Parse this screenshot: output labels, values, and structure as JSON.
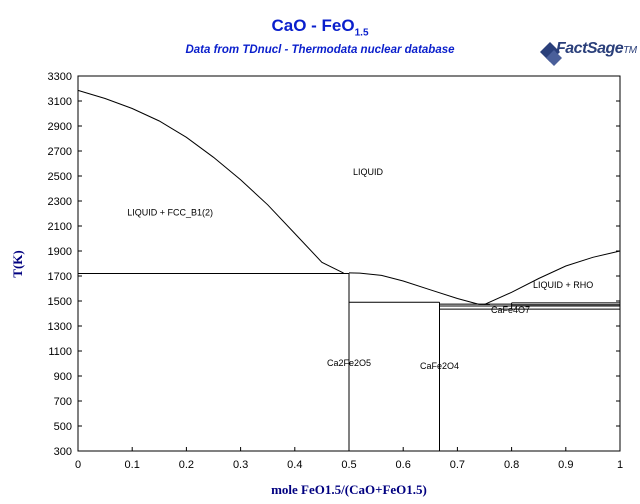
{
  "title_main": "CaO - FeO",
  "title_sub": "1.5",
  "subtitle": "Data from TDnucl - Thermodata nuclear database",
  "logo": {
    "brand": "FactSage",
    "mark": "TM"
  },
  "chart_data": {
    "type": "line",
    "title": "CaO - FeO1.5",
    "subtitle": "Data from TDnucl - Thermodata nuclear database",
    "xlabel": "mole FeO1.5/(CaO+FeO1.5)",
    "ylabel": "T(K)",
    "xlim": [
      0,
      1
    ],
    "ylim": [
      300,
      3300
    ],
    "xticks": [
      0,
      0.1,
      0.2,
      0.3,
      0.4,
      0.5,
      0.6,
      0.7,
      0.8,
      0.9,
      1
    ],
    "xtick_labels": [
      "0",
      "0.1",
      "0.2",
      "0.3",
      "0.4",
      "0.5",
      "0.6",
      "0.7",
      "0.8",
      "0.9",
      "1"
    ],
    "yticks": [
      300,
      500,
      700,
      900,
      1100,
      1300,
      1500,
      1700,
      1900,
      2100,
      2300,
      2500,
      2700,
      2900,
      3100,
      3300
    ],
    "ytick_labels": [
      "300",
      "500",
      "700",
      "900",
      "1100",
      "1300",
      "1500",
      "1700",
      "1900",
      "2100",
      "2300",
      "2500",
      "2700",
      "2900",
      "3100",
      "3300"
    ],
    "grid": false,
    "series": [
      {
        "values": [
          [
            0,
            3185
          ],
          [
            0.05,
            3120
          ],
          [
            0.1,
            3040
          ],
          [
            0.15,
            2940
          ],
          [
            0.2,
            2810
          ],
          [
            0.25,
            2650
          ],
          [
            0.3,
            2470
          ],
          [
            0.35,
            2270
          ],
          [
            0.4,
            2040
          ],
          [
            0.45,
            1810
          ],
          [
            0.49,
            1723
          ]
        ]
      },
      {
        "values": [
          [
            0.5,
            1725
          ],
          [
            0.52,
            1723
          ],
          [
            0.56,
            1705
          ],
          [
            0.6,
            1660
          ],
          [
            0.65,
            1590
          ],
          [
            0.7,
            1520
          ],
          [
            0.74,
            1473
          ]
        ]
      },
      {
        "values": [
          [
            0.75,
            1473
          ],
          [
            0.8,
            1570
          ],
          [
            0.85,
            1680
          ],
          [
            0.9,
            1780
          ],
          [
            0.95,
            1850
          ],
          [
            1.0,
            1900
          ]
        ]
      },
      {
        "values": [
          [
            0,
            1720
          ],
          [
            0.5,
            1720
          ]
        ]
      },
      {
        "values": [
          [
            0.5,
            1490
          ],
          [
            0.667,
            1490
          ]
        ]
      },
      {
        "values": [
          [
            0.667,
            1475
          ],
          [
            0.8,
            1475
          ]
        ]
      },
      {
        "values": [
          [
            0.667,
            1460
          ],
          [
            1.0,
            1460
          ]
        ]
      },
      {
        "values": [
          [
            0.8,
            1470
          ],
          [
            1.0,
            1470
          ]
        ]
      },
      {
        "values": [
          [
            0.8,
            1485
          ],
          [
            1.0,
            1485
          ]
        ]
      },
      {
        "values": [
          [
            0.667,
            1435
          ],
          [
            1.0,
            1435
          ]
        ]
      },
      {
        "values": [
          [
            0.5,
            300
          ],
          [
            0.5,
            1720
          ]
        ]
      },
      {
        "values": [
          [
            0.667,
            300
          ],
          [
            0.667,
            1490
          ]
        ]
      },
      {
        "values": [
          [
            0.8,
            1435
          ],
          [
            0.8,
            1485
          ]
        ]
      },
      {
        "values": [
          [
            0.74,
            1473
          ],
          [
            0.76,
            1473
          ]
        ]
      }
    ],
    "annotations": [
      {
        "text": "LIQUID",
        "x": 0.535,
        "y": 2510
      },
      {
        "text": "LIQUID + FCC_B1(2)",
        "x": 0.17,
        "y": 2185
      },
      {
        "text": "LIQUID + RHO",
        "x": 0.895,
        "y": 1605
      },
      {
        "text": "CaFe4O7",
        "x": 0.798,
        "y": 1405
      },
      {
        "text": "Ca2Fe2O5",
        "x": 0.5,
        "y": 980
      },
      {
        "text": "CaFe2O4",
        "x": 0.667,
        "y": 955
      }
    ]
  }
}
